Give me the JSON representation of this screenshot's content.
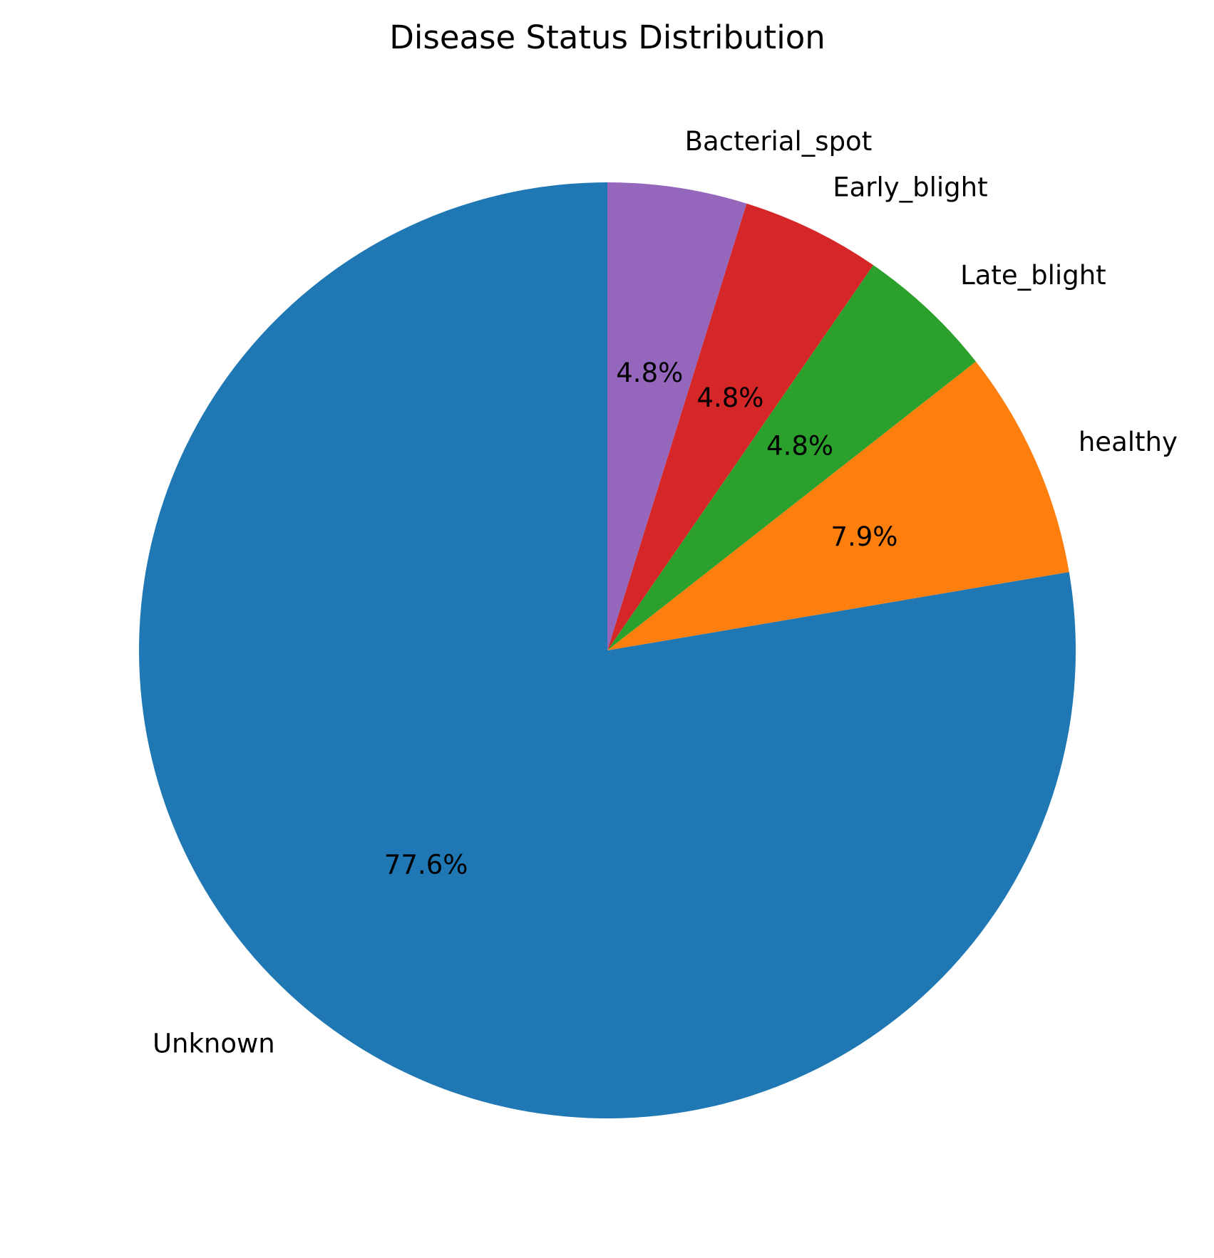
{
  "chart_data": {
    "type": "pie",
    "title": "Disease Status Distribution",
    "start_angle_deg": 90,
    "direction": "counterclockwise",
    "slices": [
      {
        "label": "Unknown",
        "value": 77.6,
        "pct_label": "77.6%",
        "color": "#1f77b4"
      },
      {
        "label": "healthy",
        "value": 7.9,
        "pct_label": "7.9%",
        "color": "#ff7f0e"
      },
      {
        "label": "Late_blight",
        "value": 4.8,
        "pct_label": "4.8%",
        "color": "#2ca02c"
      },
      {
        "label": "Early_blight",
        "value": 4.8,
        "pct_label": "4.8%",
        "color": "#d62728"
      },
      {
        "label": "Bacterial_spot",
        "value": 4.8,
        "pct_label": "4.8%",
        "color": "#9467bd"
      }
    ]
  }
}
